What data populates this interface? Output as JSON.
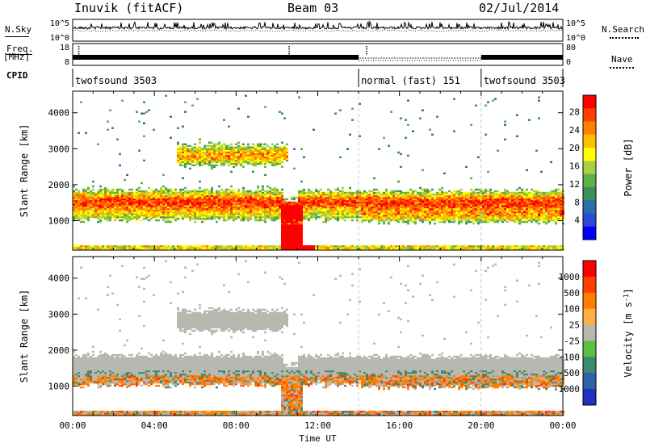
{
  "header": {
    "station": "Inuvik (fitACF)",
    "beam": "Beam 03",
    "date": "02/Jul/2014"
  },
  "top_panels": {
    "nsky_label": "N.Sky",
    "nsky_ticks": [
      "10^5",
      "10^0"
    ],
    "nsearch_label": "N.Search",
    "nsearch_ticks": [
      "10^5",
      "10^0"
    ],
    "freq_label_1": "Freq.",
    "freq_label_2": "[MHz]",
    "freq_ticks": [
      "18",
      "8"
    ],
    "nave_label": "Nave",
    "nave_ticks": [
      "80",
      "0"
    ],
    "cpid_label": "CPID",
    "cpid_segments": [
      {
        "label": "twofsound 3503",
        "start_hour": 0,
        "end_hour": 14
      },
      {
        "label": "normal (fast) 151",
        "start_hour": 14,
        "end_hour": 20
      },
      {
        "label": "twofsound 3503",
        "start_hour": 20,
        "end_hour": 24
      }
    ]
  },
  "chart_data": [
    {
      "type": "heatmap",
      "quantity": "Power",
      "xlabel": "Time UT",
      "ylabel": "Slant Range [km]",
      "xlim": [
        0,
        24
      ],
      "ylim": [
        180,
        4600
      ],
      "x_ticks": [
        "00:00",
        "04:00",
        "08:00",
        "12:00",
        "16:00",
        "20:00",
        "00:00"
      ],
      "y_ticks": [
        1000,
        2000,
        3000,
        4000
      ],
      "colorbar": {
        "label": "Power [dB]",
        "ticks": [
          "28",
          "24",
          "20",
          "16",
          "12",
          "8",
          "4"
        ],
        "range": [
          0,
          32
        ],
        "colors": [
          "#0000ff",
          "#2a4ad6",
          "#2a6faa",
          "#3f8f5a",
          "#5fb04a",
          "#a8d040",
          "#ffff00",
          "#ffc000",
          "#ff8000",
          "#ff4000",
          "#ff0000"
        ]
      }
    },
    {
      "type": "heatmap",
      "quantity": "Velocity",
      "xlabel": "Time UT",
      "ylabel": "Slant Range [km]",
      "xlim": [
        0,
        24
      ],
      "ylim": [
        180,
        4600
      ],
      "x_ticks": [
        "00:00",
        "04:00",
        "08:00",
        "12:00",
        "16:00",
        "20:00",
        "00:00"
      ],
      "y_ticks": [
        1000,
        2000,
        3000,
        4000
      ],
      "colorbar": {
        "label": "Velocity [m s",
        "label_sup": "-1",
        "label_end": "]",
        "ticks": [
          "1000",
          "500",
          "100",
          "25",
          "-25",
          "-100",
          "-500",
          "-1000"
        ],
        "colors": [
          "#2030c0",
          "#2f60a8",
          "#3e8a6e",
          "#5cc040",
          "#b8b8b0",
          "#ffb040",
          "#ff8000",
          "#ff4000",
          "#ff0000"
        ]
      }
    }
  ]
}
